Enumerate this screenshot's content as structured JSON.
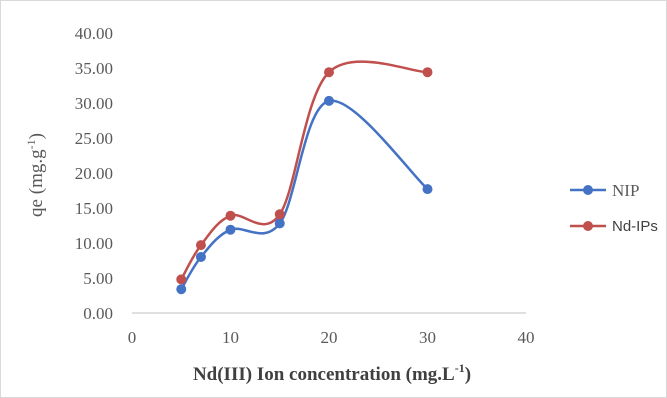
{
  "chart_data": {
    "type": "scatter",
    "smooth": true,
    "title": "",
    "xlabel": "Nd(III) Ion concentration  (mg.L",
    "xlabel_superscript": "-1",
    "xlabel_suffix": ")",
    "ylabel": "qe (mg.g",
    "ylabel_superscript": "-1",
    "ylabel_suffix": ")",
    "xlim": [
      0,
      40
    ],
    "ylim": [
      0,
      40
    ],
    "x_ticks": [
      "0",
      "10",
      "20",
      "30",
      "40"
    ],
    "y_ticks": [
      "0.00",
      "5.00",
      "10.00",
      "15.00",
      "20.00",
      "25.00",
      "30.00",
      "35.00",
      "40.00"
    ],
    "grid": false,
    "legend_position": "right",
    "series": [
      {
        "name": "NIP",
        "color": "#4472c4",
        "points": [
          [
            5,
            3.4
          ],
          [
            7,
            8.0
          ],
          [
            10,
            11.9
          ],
          [
            15,
            12.8
          ],
          [
            20,
            30.3
          ],
          [
            30,
            17.7
          ]
        ]
      },
      {
        "name": "Nd-IPs",
        "color": "#c0504d",
        "points": [
          [
            5,
            4.8
          ],
          [
            7,
            9.7
          ],
          [
            10,
            13.9
          ],
          [
            15,
            14.1
          ],
          [
            20,
            34.4
          ],
          [
            30,
            34.4
          ]
        ]
      }
    ]
  }
}
